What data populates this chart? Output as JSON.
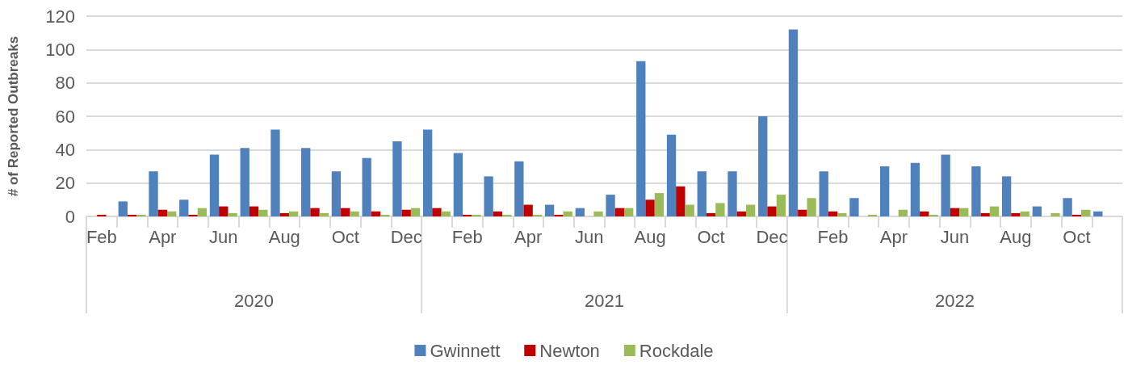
{
  "chart_data": {
    "type": "bar",
    "ylabel": "# of Reported Outbreaks",
    "categories": [
      "Feb",
      null,
      "Apr",
      null,
      "Jun",
      null,
      "Aug",
      null,
      "Oct",
      null,
      "Dec",
      null,
      "Feb",
      null,
      "Apr",
      null,
      "Jun",
      null,
      "Aug",
      null,
      "Oct",
      null,
      "Dec",
      null,
      "Feb",
      null,
      "Apr",
      null,
      "Jun",
      null,
      "Aug",
      null,
      "Oct",
      null
    ],
    "series": [
      {
        "name": "Gwinnett",
        "color": "#4f81bd",
        "values": [
          0,
          9,
          27,
          10,
          37,
          41,
          52,
          41,
          27,
          35,
          45,
          52,
          38,
          24,
          33,
          7,
          5,
          13,
          93,
          49,
          27,
          27,
          60,
          112,
          27,
          11,
          30,
          32,
          37,
          30,
          24,
          6,
          11,
          3
        ]
      },
      {
        "name": "Newton",
        "color": "#c00000",
        "values": [
          1,
          1,
          4,
          1,
          6,
          6,
          2,
          5,
          5,
          3,
          4,
          5,
          1,
          3,
          7,
          1,
          0,
          5,
          10,
          18,
          2,
          3,
          6,
          4,
          3,
          0,
          0,
          3,
          5,
          2,
          2,
          0,
          1,
          0
        ]
      },
      {
        "name": "Rockdale",
        "color": "#9bbb59",
        "values": [
          0,
          1,
          3,
          5,
          2,
          4,
          3,
          2,
          3,
          1,
          5,
          3,
          1,
          1,
          1,
          3,
          3,
          5,
          14,
          7,
          8,
          7,
          13,
          11,
          2,
          1,
          4,
          1,
          5,
          6,
          3,
          2,
          4,
          0
        ]
      }
    ],
    "ylim": [
      0,
      120
    ],
    "yticks": [
      0,
      20,
      40,
      60,
      80,
      100,
      120
    ],
    "grid": "y",
    "legend": "bottom",
    "annotations": [
      "2020",
      "2021",
      "2022"
    ]
  }
}
